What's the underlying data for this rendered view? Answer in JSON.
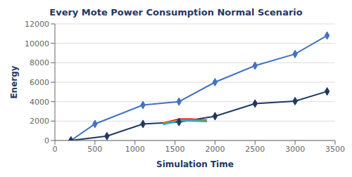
{
  "chart_data": {
    "type": "line",
    "title": "Every Mote Power Consumption Normal Scenario",
    "x_label": "Simulation Time",
    "y_label": "Energy",
    "xlim": [
      0,
      3500
    ],
    "ylim": [
      0,
      12000
    ],
    "xticks": [
      0,
      500,
      1000,
      1500,
      2000,
      2500,
      3000,
      3500
    ],
    "yticks": [
      0,
      2000,
      4000,
      6000,
      8000,
      10000,
      12000
    ],
    "grid": "y",
    "series": [
      {
        "color": "#4472C4",
        "marker": "diamond",
        "x": [
          200,
          500,
          1100,
          1550,
          2000,
          2500,
          3000,
          3400
        ],
        "values": [
          0,
          1700,
          3650,
          4000,
          6000,
          7700,
          8900,
          10800
        ]
      },
      {
        "color": "#1F3864",
        "marker": "diamond",
        "x": [
          200,
          650,
          1100,
          1550,
          2000,
          2500,
          3000,
          3400
        ],
        "values": [
          0,
          450,
          1700,
          1900,
          2500,
          3800,
          4050,
          5050
        ]
      },
      {
        "color": "#FF0000",
        "marker": "none",
        "x": [
          1350,
          1550,
          1700,
          1900
        ],
        "values": [
          1800,
          2200,
          2200,
          2100
        ]
      },
      {
        "color": "#FF8C00",
        "marker": "none",
        "x": [
          1350,
          1550,
          1700,
          1900
        ],
        "values": [
          1750,
          2100,
          2100,
          2050
        ]
      },
      {
        "color": "#70AD47",
        "marker": "none",
        "x": [
          1350,
          1550,
          1700,
          1900
        ],
        "values": [
          1700,
          2050,
          2050,
          2000
        ]
      },
      {
        "color": "#00B0F0",
        "marker": "none",
        "x": [
          1350,
          1550,
          1700,
          1900
        ],
        "values": [
          1650,
          2000,
          2000,
          1950
        ]
      }
    ]
  }
}
